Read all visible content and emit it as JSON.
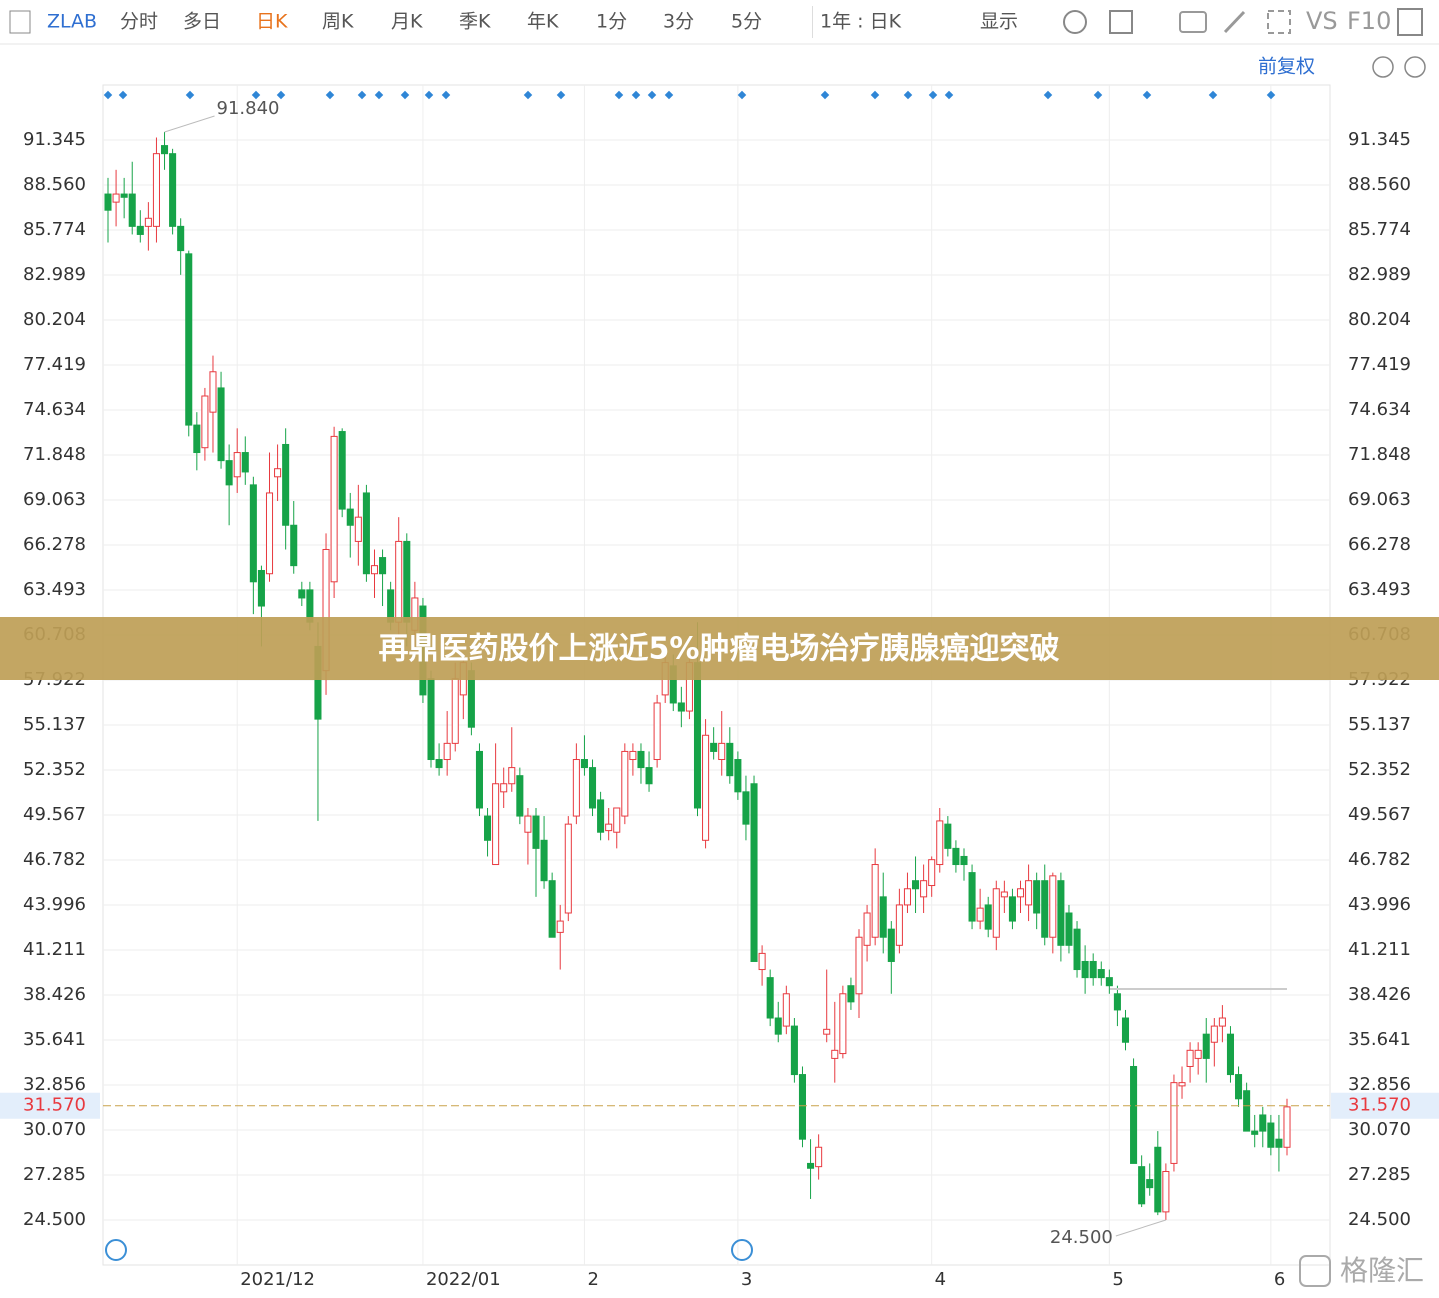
{
  "toolbar": {
    "symbol": "ZLAB",
    "tabs": [
      "分时",
      "多日",
      "日K",
      "周K",
      "月K",
      "季K",
      "年K",
      "1分",
      "3分",
      "5分"
    ],
    "active_tab": "日K",
    "range": "1年 : 日K",
    "display": "显示",
    "compare": "VS",
    "f10": "F10",
    "adjust": "前复权"
  },
  "banner": "再鼎医药股价上涨近5%肿瘤电场治疗胰腺癌迎突破",
  "watermark": "格隆汇",
  "chart_data": {
    "type": "candlestick",
    "candles": [
      [
        88,
        89,
        85,
        87
      ],
      [
        87.5,
        89.5,
        86,
        88
      ],
      [
        88,
        89,
        86.5,
        87.8
      ],
      [
        88,
        90,
        85.5,
        86
      ],
      [
        86,
        87,
        85,
        85.5
      ],
      [
        86,
        87.5,
        84.5,
        86.5
      ],
      [
        86,
        91.5,
        85,
        90.5
      ],
      [
        91,
        91.84,
        89.5,
        90.5
      ],
      [
        90.5,
        90.8,
        85.5,
        86
      ],
      [
        86,
        86.5,
        83,
        84.5
      ],
      [
        84.3,
        84.5,
        73,
        73.7
      ],
      [
        73.7,
        74.5,
        70.9,
        72
      ],
      [
        72.3,
        76,
        71.5,
        75.5
      ],
      [
        74.5,
        78,
        72,
        77
      ],
      [
        76,
        77,
        71,
        71.5
      ],
      [
        71.5,
        72.5,
        67.5,
        70
      ],
      [
        70.5,
        73.5,
        69.5,
        72
      ],
      [
        72,
        73,
        70,
        70.8
      ],
      [
        70,
        70.5,
        62,
        64
      ],
      [
        64.7,
        65,
        60,
        62.5
      ],
      [
        64.5,
        72,
        64,
        69.5
      ],
      [
        70.5,
        72.5,
        69,
        71
      ],
      [
        72.5,
        73.5,
        66,
        67.5
      ],
      [
        67.5,
        69,
        64.5,
        65
      ],
      [
        63.5,
        64,
        62.5,
        63
      ],
      [
        63.5,
        64,
        61,
        61.5
      ],
      [
        60,
        61.5,
        49.2,
        55.5
      ],
      [
        58.5,
        67,
        57,
        66
      ],
      [
        64,
        73.6,
        63,
        73
      ],
      [
        73.3,
        73.5,
        68,
        68.5
      ],
      [
        68.5,
        69.5,
        65.5,
        67.5
      ],
      [
        66.5,
        70,
        65,
        68
      ],
      [
        69.5,
        70,
        64,
        64.5
      ],
      [
        64.5,
        66,
        63,
        65
      ],
      [
        65.5,
        66,
        62.5,
        64.5
      ],
      [
        63.5,
        64,
        61,
        61.5
      ],
      [
        61.5,
        68,
        60.5,
        66.5
      ],
      [
        66.5,
        67,
        60,
        61.5
      ],
      [
        61,
        64,
        60,
        63
      ],
      [
        62.5,
        63,
        56.5,
        57
      ],
      [
        58,
        58.5,
        52.5,
        53
      ],
      [
        53,
        54,
        52,
        52.5
      ],
      [
        53,
        56,
        52,
        54
      ],
      [
        54,
        59,
        53.5,
        58
      ],
      [
        57,
        59.5,
        55.5,
        59
      ],
      [
        58.5,
        59,
        54.5,
        55
      ],
      [
        53.5,
        54,
        49.5,
        50
      ],
      [
        49.5,
        50,
        47,
        48
      ],
      [
        46.5,
        54,
        46.5,
        51.5
      ],
      [
        51,
        52.5,
        50,
        51.5
      ],
      [
        51.5,
        55,
        51,
        52.5
      ],
      [
        52,
        52.5,
        49,
        49.5
      ],
      [
        48.5,
        50,
        46.5,
        49.5
      ],
      [
        49.5,
        50,
        44.5,
        47.5
      ],
      [
        48,
        49.5,
        45,
        45.5
      ],
      [
        45.5,
        46,
        42,
        42
      ],
      [
        42.3,
        44,
        40,
        43
      ],
      [
        43.5,
        49.5,
        43,
        49
      ],
      [
        49.5,
        54,
        49,
        53
      ],
      [
        53,
        54.5,
        52,
        52.5
      ],
      [
        52.5,
        53,
        49.5,
        50
      ],
      [
        50.5,
        51,
        48,
        48.5
      ],
      [
        48.6,
        50,
        48,
        49
      ],
      [
        48.5,
        50,
        47.5,
        50
      ],
      [
        49.5,
        54,
        49,
        53.5
      ],
      [
        53,
        54,
        52,
        53.5
      ],
      [
        53.5,
        54,
        51.5,
        52.5
      ],
      [
        52.5,
        53.5,
        51,
        51.5
      ],
      [
        53,
        57,
        52.5,
        56.5
      ],
      [
        57,
        60,
        56.5,
        59
      ],
      [
        58.8,
        59.5,
        56,
        56.5
      ],
      [
        56.5,
        57.5,
        55,
        56
      ],
      [
        56,
        60,
        55.5,
        59
      ],
      [
        59,
        61.5,
        49.5,
        50
      ],
      [
        48,
        55.5,
        47.5,
        54.5
      ],
      [
        54,
        55,
        53,
        53.5
      ],
      [
        53,
        56,
        52,
        54
      ],
      [
        54,
        55,
        51.5,
        52
      ],
      [
        53,
        53.5,
        50.5,
        51
      ],
      [
        51,
        52,
        48,
        49
      ],
      [
        51.5,
        52,
        40.5,
        40.5
      ],
      [
        40,
        41.5,
        39,
        41
      ],
      [
        39.5,
        40,
        36.5,
        37
      ],
      [
        37,
        38,
        35.5,
        36
      ],
      [
        36.5,
        39,
        36,
        38.5
      ],
      [
        36.5,
        37,
        33,
        33.5
      ],
      [
        33.5,
        34,
        29,
        29.5
      ],
      [
        28,
        29.5,
        25.8,
        27.7
      ],
      [
        27.8,
        29.8,
        27,
        29
      ],
      [
        36,
        40,
        35.5,
        36.3
      ],
      [
        34.5,
        38,
        33,
        35
      ],
      [
        34.8,
        39,
        34.5,
        38.5
      ],
      [
        39,
        39.5,
        37.5,
        38
      ],
      [
        38.5,
        42.5,
        37,
        42
      ],
      [
        41.5,
        44,
        40.5,
        43.5
      ],
      [
        42,
        47.5,
        41.5,
        46.5
      ],
      [
        44.5,
        46,
        41,
        42
      ],
      [
        42.5,
        43,
        38.5,
        40.5
      ],
      [
        41.5,
        45,
        41,
        44
      ],
      [
        44,
        46,
        43.5,
        45
      ],
      [
        45.5,
        47,
        43.5,
        45
      ],
      [
        44.5,
        46.5,
        43.5,
        45.5
      ],
      [
        45.2,
        47,
        44.5,
        46.8
      ],
      [
        46.5,
        50,
        46,
        49.2
      ],
      [
        49,
        49.5,
        47,
        47.5
      ],
      [
        47.5,
        48,
        46,
        46.5
      ],
      [
        47,
        47.5,
        45.5,
        46.5
      ],
      [
        46,
        46.5,
        42.5,
        43
      ],
      [
        43,
        45,
        42.5,
        43.8
      ],
      [
        44,
        44.5,
        42,
        42.5
      ],
      [
        42,
        45.5,
        41.2,
        45
      ],
      [
        44.5,
        45.5,
        43.5,
        44.8
      ],
      [
        44.5,
        45,
        42.5,
        43
      ],
      [
        44.5,
        45.5,
        43.5,
        45
      ],
      [
        44,
        46.5,
        43,
        45.5
      ],
      [
        45.5,
        46,
        42.5,
        43.5
      ],
      [
        45.5,
        46.5,
        41.5,
        42
      ],
      [
        42,
        46,
        41,
        45.8
      ],
      [
        45.5,
        46,
        40.5,
        41.5
      ],
      [
        43.5,
        44,
        41,
        41.5
      ],
      [
        42.5,
        43,
        39.5,
        40
      ],
      [
        40.5,
        41.5,
        38.5,
        39.5
      ],
      [
        40.5,
        41,
        39,
        39.5
      ],
      [
        40,
        40.5,
        39,
        39.5
      ],
      [
        39.5,
        40,
        38.5,
        39
      ],
      [
        38.5,
        39,
        36.5,
        37.5
      ],
      [
        37,
        37.5,
        35,
        35.5
      ],
      [
        34,
        34.5,
        28,
        28
      ],
      [
        27.8,
        28.5,
        25.3,
        25.5
      ],
      [
        27,
        28,
        26,
        26.5
      ],
      [
        29,
        30,
        24.8,
        25
      ],
      [
        25,
        28,
        24.5,
        27.5
      ],
      [
        28,
        33.5,
        27.5,
        33
      ],
      [
        32.8,
        34,
        32,
        33
      ],
      [
        34,
        35.5,
        33,
        35
      ],
      [
        34.5,
        35.5,
        33.5,
        35
      ],
      [
        36,
        37,
        33,
        34.5
      ],
      [
        35.5,
        37,
        34,
        36.5
      ],
      [
        36.5,
        37.8,
        35.5,
        37
      ],
      [
        36,
        36.5,
        33,
        33.5
      ],
      [
        33.5,
        34,
        31.5,
        32
      ],
      [
        32.5,
        33,
        30,
        30
      ],
      [
        30,
        31,
        29,
        29.8
      ],
      [
        31,
        31.5,
        29,
        30
      ],
      [
        30.5,
        31,
        28.5,
        29
      ],
      [
        29.5,
        31,
        27.5,
        29
      ],
      [
        29,
        32,
        28.5,
        31.5
      ]
    ],
    "up_color": "#e8393f",
    "down_color": "#16a348",
    "xlim": [
      0,
      146
    ],
    "xticks": [
      {
        "value": 16,
        "label": "2021/12"
      },
      {
        "value": 39,
        "label": "2022/01"
      },
      {
        "value": 59,
        "label": "2"
      },
      {
        "value": 78,
        "label": "3"
      },
      {
        "value": 102,
        "label": "4"
      },
      {
        "value": 124,
        "label": "5"
      },
      {
        "value": 144,
        "label": "6"
      }
    ],
    "ylim": [
      23.26,
      94.75
    ],
    "yticks": [
      91.345,
      {
        "value": 88.56,
        "label": "88.560"
      },
      85.774,
      82.989,
      80.204,
      77.419,
      74.634,
      71.848,
      69.063,
      66.278,
      63.493,
      60.708,
      57.922,
      55.137,
      52.352,
      49.567,
      46.782,
      43.996,
      41.211,
      38.426,
      35.641,
      32.856,
      {
        "value": 30.07,
        "label": "30.070"
      },
      27.285,
      {
        "value": 24.5,
        "label": "24.500"
      }
    ],
    "grid": true,
    "max_label": {
      "value": 91.84,
      "label": "91.840"
    },
    "min_label": {
      "value": 24.5,
      "label": "24.500"
    },
    "last_price": {
      "value": 31.57,
      "label": "31.570"
    }
  }
}
